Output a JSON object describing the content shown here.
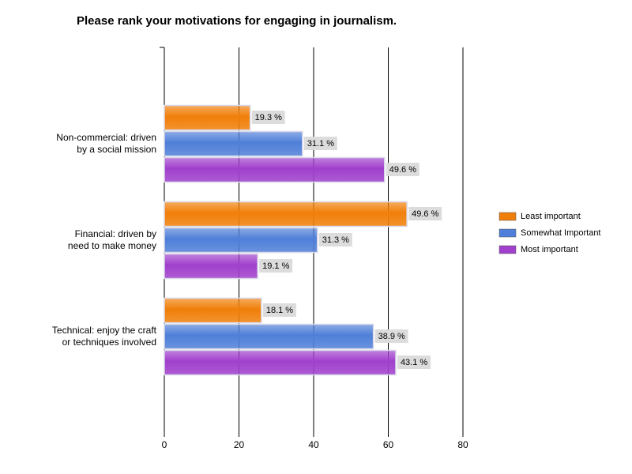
{
  "chart_data": {
    "type": "bar",
    "orientation": "horizontal",
    "title": "Please rank your motivations for engaging in journalism.",
    "categories": [
      "Non-commercial: driven\nby a social mission",
      "Financial: driven by\nneed to make money",
      "Technical: enjoy the craft\nor techniques involved"
    ],
    "series": [
      {
        "name": "Least important",
        "color": "#f07f09",
        "values": [
          23,
          65,
          26
        ],
        "percentages": [
          19.3,
          49.6,
          18.1
        ],
        "percentage_labels": [
          "19.3 %",
          "49.6 %",
          "18.1 %"
        ]
      },
      {
        "name": "Somewhat Important",
        "color": "#4f7fd8",
        "values": [
          37,
          41,
          56
        ],
        "percentages": [
          31.1,
          31.3,
          38.9
        ],
        "percentage_labels": [
          "31.1 %",
          "31.3 %",
          "38.9 %"
        ]
      },
      {
        "name": "Most important",
        "color": "#a040cc",
        "values": [
          59,
          25,
          62
        ],
        "percentages": [
          49.6,
          19.1,
          43.1
        ],
        "percentage_labels": [
          "49.6 %",
          "19.1 %",
          "43.1 %"
        ]
      }
    ],
    "xlim": [
      0,
      80
    ],
    "xticks": [
      0,
      20,
      40,
      60,
      80
    ],
    "grid": true,
    "legend": "right"
  }
}
